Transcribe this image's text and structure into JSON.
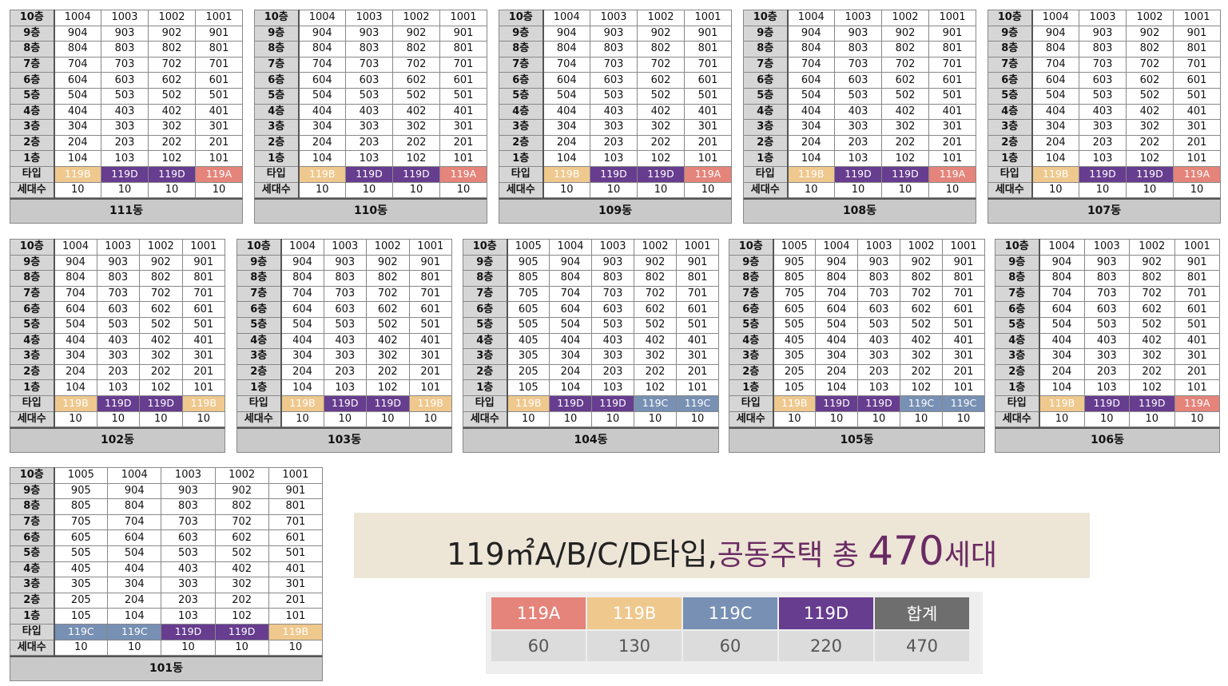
{
  "labels": {
    "unit_type": "타입",
    "households": "세대수"
  },
  "floor_labels": [
    "10층",
    "9층",
    "8층",
    "7층",
    "6층",
    "5층",
    "4층",
    "3층",
    "2층",
    "1층"
  ],
  "type_labels": {
    "A": "119A",
    "B": "119B",
    "C": "119C",
    "D": "119D"
  },
  "buildings": [
    {
      "name": "111동",
      "types": [
        "B",
        "D",
        "D",
        "A"
      ],
      "households": [
        "10",
        "10",
        "10",
        "10"
      ],
      "rows": [
        [
          "1004",
          "1003",
          "1002",
          "1001"
        ],
        [
          "904",
          "903",
          "902",
          "901"
        ],
        [
          "804",
          "803",
          "802",
          "801"
        ],
        [
          "704",
          "703",
          "702",
          "701"
        ],
        [
          "604",
          "603",
          "602",
          "601"
        ],
        [
          "504",
          "503",
          "502",
          "501"
        ],
        [
          "404",
          "403",
          "402",
          "401"
        ],
        [
          "304",
          "303",
          "302",
          "301"
        ],
        [
          "204",
          "203",
          "202",
          "201"
        ],
        [
          "104",
          "103",
          "102",
          "101"
        ]
      ]
    },
    {
      "name": "110동",
      "types": [
        "B",
        "D",
        "D",
        "A"
      ],
      "households": [
        "10",
        "10",
        "10",
        "10"
      ],
      "rows": [
        [
          "1004",
          "1003",
          "1002",
          "1001"
        ],
        [
          "904",
          "903",
          "902",
          "901"
        ],
        [
          "804",
          "803",
          "802",
          "801"
        ],
        [
          "704",
          "703",
          "702",
          "701"
        ],
        [
          "604",
          "603",
          "602",
          "601"
        ],
        [
          "504",
          "503",
          "502",
          "501"
        ],
        [
          "404",
          "403",
          "402",
          "401"
        ],
        [
          "304",
          "303",
          "302",
          "301"
        ],
        [
          "204",
          "203",
          "202",
          "201"
        ],
        [
          "104",
          "103",
          "102",
          "101"
        ]
      ]
    },
    {
      "name": "109동",
      "types": [
        "B",
        "D",
        "D",
        "A"
      ],
      "households": [
        "10",
        "10",
        "10",
        "10"
      ],
      "rows": [
        [
          "1004",
          "1003",
          "1002",
          "1001"
        ],
        [
          "904",
          "903",
          "902",
          "901"
        ],
        [
          "804",
          "803",
          "802",
          "801"
        ],
        [
          "704",
          "703",
          "702",
          "701"
        ],
        [
          "604",
          "603",
          "602",
          "601"
        ],
        [
          "504",
          "503",
          "502",
          "501"
        ],
        [
          "404",
          "403",
          "402",
          "401"
        ],
        [
          "304",
          "303",
          "302",
          "301"
        ],
        [
          "204",
          "203",
          "202",
          "201"
        ],
        [
          "104",
          "103",
          "102",
          "101"
        ]
      ]
    },
    {
      "name": "108동",
      "types": [
        "B",
        "D",
        "D",
        "A"
      ],
      "households": [
        "10",
        "10",
        "10",
        "10"
      ],
      "rows": [
        [
          "1004",
          "1003",
          "1002",
          "1001"
        ],
        [
          "904",
          "903",
          "902",
          "901"
        ],
        [
          "804",
          "803",
          "802",
          "801"
        ],
        [
          "704",
          "703",
          "702",
          "701"
        ],
        [
          "604",
          "603",
          "602",
          "601"
        ],
        [
          "504",
          "503",
          "502",
          "501"
        ],
        [
          "404",
          "403",
          "402",
          "401"
        ],
        [
          "304",
          "303",
          "302",
          "301"
        ],
        [
          "204",
          "203",
          "202",
          "201"
        ],
        [
          "104",
          "103",
          "102",
          "101"
        ]
      ]
    },
    {
      "name": "107동",
      "types": [
        "B",
        "D",
        "D",
        "A"
      ],
      "households": [
        "10",
        "10",
        "10",
        "10"
      ],
      "rows": [
        [
          "1004",
          "1003",
          "1002",
          "1001"
        ],
        [
          "904",
          "903",
          "902",
          "901"
        ],
        [
          "804",
          "803",
          "802",
          "801"
        ],
        [
          "704",
          "703",
          "702",
          "701"
        ],
        [
          "604",
          "603",
          "602",
          "601"
        ],
        [
          "504",
          "503",
          "502",
          "501"
        ],
        [
          "404",
          "403",
          "402",
          "401"
        ],
        [
          "304",
          "303",
          "302",
          "301"
        ],
        [
          "204",
          "203",
          "202",
          "201"
        ],
        [
          "104",
          "103",
          "102",
          "101"
        ]
      ]
    },
    {
      "name": "102동",
      "types": [
        "B",
        "D",
        "D",
        "B"
      ],
      "households": [
        "10",
        "10",
        "10",
        "10"
      ],
      "rows": [
        [
          "1004",
          "1003",
          "1002",
          "1001"
        ],
        [
          "904",
          "903",
          "902",
          "901"
        ],
        [
          "804",
          "803",
          "802",
          "801"
        ],
        [
          "704",
          "703",
          "702",
          "701"
        ],
        [
          "604",
          "603",
          "602",
          "601"
        ],
        [
          "504",
          "503",
          "502",
          "501"
        ],
        [
          "404",
          "403",
          "402",
          "401"
        ],
        [
          "304",
          "303",
          "302",
          "301"
        ],
        [
          "204",
          "203",
          "202",
          "201"
        ],
        [
          "104",
          "103",
          "102",
          "101"
        ]
      ]
    },
    {
      "name": "103동",
      "types": [
        "B",
        "D",
        "D",
        "B"
      ],
      "households": [
        "10",
        "10",
        "10",
        "10"
      ],
      "rows": [
        [
          "1004",
          "1003",
          "1002",
          "1001"
        ],
        [
          "904",
          "903",
          "902",
          "901"
        ],
        [
          "804",
          "803",
          "802",
          "801"
        ],
        [
          "704",
          "703",
          "702",
          "701"
        ],
        [
          "604",
          "603",
          "602",
          "601"
        ],
        [
          "504",
          "503",
          "502",
          "501"
        ],
        [
          "404",
          "403",
          "402",
          "401"
        ],
        [
          "304",
          "303",
          "302",
          "301"
        ],
        [
          "204",
          "203",
          "202",
          "201"
        ],
        [
          "104",
          "103",
          "102",
          "101"
        ]
      ]
    },
    {
      "name": "104동",
      "types": [
        "B",
        "D",
        "D",
        "C",
        "C"
      ],
      "households": [
        "10",
        "10",
        "10",
        "10",
        "10"
      ],
      "rows": [
        [
          "1005",
          "1004",
          "1003",
          "1002",
          "1001"
        ],
        [
          "905",
          "904",
          "903",
          "902",
          "901"
        ],
        [
          "805",
          "804",
          "803",
          "802",
          "801"
        ],
        [
          "705",
          "704",
          "703",
          "702",
          "701"
        ],
        [
          "605",
          "604",
          "603",
          "602",
          "601"
        ],
        [
          "505",
          "504",
          "503",
          "502",
          "501"
        ],
        [
          "405",
          "404",
          "403",
          "402",
          "401"
        ],
        [
          "305",
          "304",
          "303",
          "302",
          "301"
        ],
        [
          "205",
          "204",
          "203",
          "202",
          "201"
        ],
        [
          "105",
          "104",
          "103",
          "102",
          "101"
        ]
      ]
    },
    {
      "name": "105동",
      "types": [
        "B",
        "D",
        "D",
        "C",
        "C"
      ],
      "households": [
        "10",
        "10",
        "10",
        "10",
        "10"
      ],
      "rows": [
        [
          "1005",
          "1004",
          "1003",
          "1002",
          "1001"
        ],
        [
          "905",
          "904",
          "903",
          "902",
          "901"
        ],
        [
          "805",
          "804",
          "803",
          "802",
          "801"
        ],
        [
          "705",
          "704",
          "703",
          "702",
          "701"
        ],
        [
          "605",
          "604",
          "603",
          "602",
          "601"
        ],
        [
          "505",
          "504",
          "503",
          "502",
          "501"
        ],
        [
          "405",
          "404",
          "403",
          "402",
          "401"
        ],
        [
          "305",
          "304",
          "303",
          "302",
          "301"
        ],
        [
          "205",
          "204",
          "203",
          "202",
          "201"
        ],
        [
          "105",
          "104",
          "103",
          "102",
          "101"
        ]
      ]
    },
    {
      "name": "106동",
      "types": [
        "B",
        "D",
        "D",
        "A"
      ],
      "households": [
        "10",
        "10",
        "10",
        "10"
      ],
      "rows": [
        [
          "1004",
          "1003",
          "1002",
          "1001"
        ],
        [
          "904",
          "903",
          "902",
          "901"
        ],
        [
          "804",
          "803",
          "802",
          "801"
        ],
        [
          "704",
          "703",
          "702",
          "701"
        ],
        [
          "604",
          "603",
          "602",
          "601"
        ],
        [
          "504",
          "503",
          "502",
          "501"
        ],
        [
          "404",
          "403",
          "402",
          "401"
        ],
        [
          "304",
          "303",
          "302",
          "301"
        ],
        [
          "204",
          "203",
          "202",
          "201"
        ],
        [
          "104",
          "103",
          "102",
          "101"
        ]
      ]
    },
    {
      "name": "101동",
      "types": [
        "C",
        "C",
        "D",
        "D",
        "B"
      ],
      "households": [
        "10",
        "10",
        "10",
        "10",
        "10"
      ],
      "rows": [
        [
          "1005",
          "1004",
          "1003",
          "1002",
          "1001"
        ],
        [
          "905",
          "904",
          "903",
          "902",
          "901"
        ],
        [
          "805",
          "804",
          "803",
          "802",
          "801"
        ],
        [
          "705",
          "704",
          "703",
          "702",
          "701"
        ],
        [
          "605",
          "604",
          "603",
          "602",
          "601"
        ],
        [
          "505",
          "504",
          "503",
          "502",
          "501"
        ],
        [
          "405",
          "404",
          "403",
          "402",
          "401"
        ],
        [
          "305",
          "304",
          "303",
          "302",
          "301"
        ],
        [
          "205",
          "204",
          "203",
          "202",
          "201"
        ],
        [
          "105",
          "104",
          "103",
          "102",
          "101"
        ]
      ]
    }
  ],
  "banner": {
    "part1": "119㎡A/B/C/D타입,",
    "part2": "공동주택 총 ",
    "part3": "470",
    "part4": "세대"
  },
  "summary": {
    "headers": [
      "119A",
      "119B",
      "119C",
      "119D",
      "합계"
    ],
    "counts": [
      "60",
      "130",
      "60",
      "220",
      "470"
    ]
  },
  "colors": {
    "type_A": "#e4847a",
    "type_B": "#efc88e",
    "type_C": "#7790b4",
    "type_D": "#673d8f",
    "total": "#6e6e6e",
    "label_bg": "#d6d6d6",
    "banner_bg": "#ede5d6",
    "banner_accent": "#6a2a63"
  }
}
